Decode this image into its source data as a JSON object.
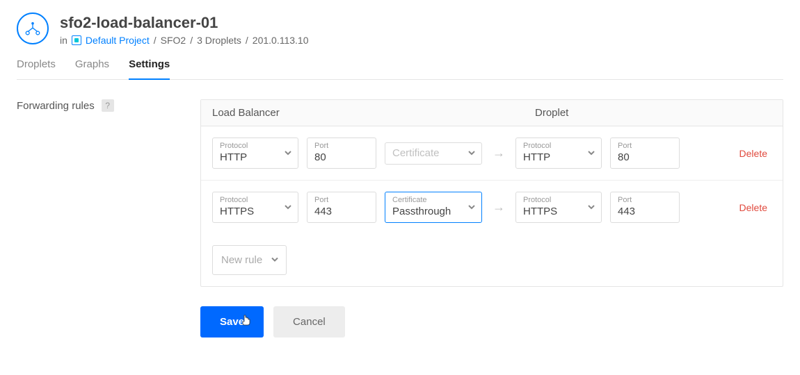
{
  "header": {
    "title": "sfo2-load-balancer-01",
    "breadcrumb": {
      "prefix": "in",
      "project_link": "Default Project",
      "region": "SFO2",
      "droplets": "3 Droplets",
      "ip": "201.0.113.10"
    }
  },
  "tabs": {
    "items": [
      {
        "label": "Droplets",
        "active": false
      },
      {
        "label": "Graphs",
        "active": false
      },
      {
        "label": "Settings",
        "active": true
      }
    ]
  },
  "section": {
    "label": "Forwarding rules",
    "help_glyph": "?"
  },
  "panel": {
    "header_lb": "Load Balancer",
    "header_droplet": "Droplet",
    "field_labels": {
      "protocol": "Protocol",
      "port": "Port",
      "certificate": "Certificate"
    },
    "rules": [
      {
        "lb_protocol": "HTTP",
        "lb_port": "80",
        "certificate": "Certificate",
        "certificate_is_placeholder": true,
        "certificate_highlight": false,
        "dr_protocol": "HTTP",
        "dr_port": "80",
        "delete_label": "Delete"
      },
      {
        "lb_protocol": "HTTPS",
        "lb_port": "443",
        "certificate": "Passthrough",
        "certificate_is_placeholder": false,
        "certificate_highlight": true,
        "dr_protocol": "HTTPS",
        "dr_port": "443",
        "delete_label": "Delete"
      }
    ],
    "new_rule_label": "New rule"
  },
  "actions": {
    "save": "Save",
    "cancel": "Cancel"
  },
  "colors": {
    "brand_blue": "#0069ff",
    "link_blue": "#0080ff",
    "danger": "#e0493d",
    "border": "#e5e5e5"
  }
}
